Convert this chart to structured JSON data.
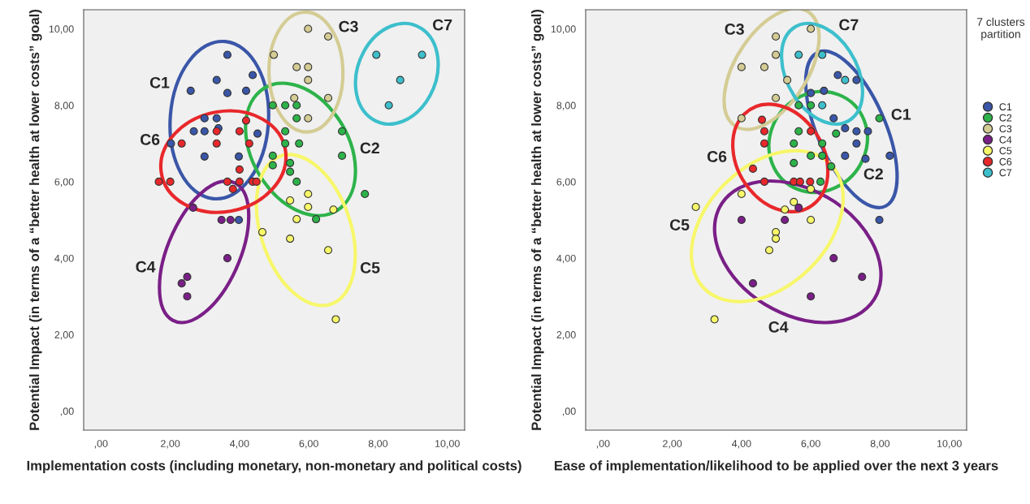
{
  "chart_data": [
    {
      "type": "scatter",
      "xlabel": "Implementation costs (including monetary, non-monetary and political costs)",
      "ylabel": "Potential Impact (in terms of a “better health at lower costs” goal)",
      "xlim": [
        -0.5,
        10.5
      ],
      "ylim": [
        -0.5,
        10.5
      ],
      "xticks": [
        {
          "value": 0,
          "label": ",00"
        },
        {
          "value": 2,
          "label": "2,00"
        },
        {
          "value": 4,
          "label": "4,00"
        },
        {
          "value": 6,
          "label": "6,00"
        },
        {
          "value": 8,
          "label": "8,00"
        },
        {
          "value": 10,
          "label": "10,00"
        }
      ],
      "yticks": [
        {
          "value": 0,
          "label": ",00"
        },
        {
          "value": 2,
          "label": "2,00"
        },
        {
          "value": 4,
          "label": "4,00"
        },
        {
          "value": 6,
          "label": "6,00"
        },
        {
          "value": 8,
          "label": "8,00"
        },
        {
          "value": 10,
          "label": "10,00"
        }
      ],
      "grid": false,
      "legend": false,
      "marker": "circle",
      "series": [
        {
          "color": "#3a56a8",
          "x": [
            3.65,
            4.38,
            3.34,
            2.59,
            3.65,
            4.19,
            2.99,
            3.34,
            3.39,
            2.68,
            2.99,
            2.02,
            2.99,
            3.98,
            4.52,
            3.98
          ],
          "values": [
            9.32,
            8.79,
            8.66,
            8.38,
            8.32,
            8.38,
            7.66,
            7.66,
            7.4,
            7.32,
            7.32,
            7.0,
            6.66,
            6.66,
            7.26,
            5.0
          ]
        },
        {
          "color": "#2db34a",
          "x": [
            4.96,
            5.32,
            5.65,
            5.65,
            5.32,
            6.96,
            5.32,
            5.72,
            4.96,
            6.96,
            4.96,
            5.46,
            5.46,
            5.65,
            7.62,
            6.21
          ],
          "values": [
            8.0,
            8.0,
            8.0,
            7.66,
            7.32,
            7.32,
            7.0,
            7.0,
            6.68,
            6.68,
            6.43,
            6.49,
            6.26,
            6.0,
            5.68,
            5.02
          ]
        },
        {
          "color": "#d4cc94",
          "x": [
            5.98,
            6.56,
            4.99,
            5.65,
            5.98,
            5.98,
            5.58,
            6.56,
            5.98
          ],
          "values": [
            10.0,
            9.8,
            9.32,
            9.0,
            9.0,
            8.66,
            8.19,
            8.19,
            7.66
          ]
        },
        {
          "color": "#7a1f87",
          "x": [
            2.66,
            3.48,
            3.74,
            3.65,
            2.49,
            2.33,
            2.49
          ],
          "values": [
            5.32,
            5.0,
            5.0,
            4.0,
            3.51,
            3.34,
            3.0
          ]
        },
        {
          "color": "#f7f76a",
          "x": [
            5.98,
            5.46,
            5.98,
            6.71,
            5.65,
            4.66,
            5.46,
            6.56,
            6.78
          ],
          "values": [
            5.68,
            5.51,
            5.34,
            5.27,
            5.02,
            4.68,
            4.51,
            4.21,
            2.4
          ]
        },
        {
          "color": "#e8282b",
          "x": [
            4.19,
            3.34,
            4.0,
            2.33,
            3.34,
            4.28,
            4.0,
            1.67,
            2.0,
            3.65,
            4.0,
            4.38,
            4.49,
            3.81
          ],
          "values": [
            7.6,
            7.32,
            7.32,
            7.0,
            7.0,
            7.0,
            6.32,
            6.0,
            6.0,
            6.0,
            6.0,
            6.0,
            6.0,
            5.81
          ]
        },
        {
          "color": "#3dbfcc",
          "x": [
            7.95,
            9.27,
            8.64,
            8.31
          ],
          "values": [
            9.32,
            9.32,
            8.66,
            8.0
          ]
        }
      ],
      "annotations": [
        "C1",
        "C2",
        "C3",
        "C4",
        "C5",
        "C6",
        "C7"
      ]
    },
    {
      "type": "scatter",
      "xlabel": "Ease of implementation/likelihood to be applied over the next 3 years",
      "ylabel": "Potential Impact (in terms of a “better health at lower costs” goal)",
      "xlim": [
        -0.5,
        10.5
      ],
      "ylim": [
        -0.5,
        10.5
      ],
      "xticks": [
        {
          "value": 0,
          "label": ",00"
        },
        {
          "value": 2,
          "label": "2,00"
        },
        {
          "value": 4,
          "label": "4,00"
        },
        {
          "value": 6,
          "label": "6,00"
        },
        {
          "value": 8,
          "label": "8,00"
        },
        {
          "value": 10,
          "label": "10,00"
        }
      ],
      "yticks": [
        {
          "value": 0,
          "label": ",00"
        },
        {
          "value": 2,
          "label": "2,00"
        },
        {
          "value": 4,
          "label": "4,00"
        },
        {
          "value": 6,
          "label": "6,00"
        },
        {
          "value": 8,
          "label": "8,00"
        },
        {
          "value": 10,
          "label": "10,00"
        }
      ],
      "grid": false,
      "legend": "right",
      "legend_title": "7 clusters partition",
      "marker": "circle",
      "series": [
        {
          "name": "C1",
          "color": "#3a56a8",
          "x": [
            6.78,
            7.32,
            6.0,
            6.38,
            6.66,
            6.99,
            7.32,
            7.65,
            7.32,
            6.99,
            7.58,
            8.28,
            7.98
          ],
          "values": [
            8.79,
            8.66,
            8.32,
            8.38,
            7.66,
            7.4,
            7.32,
            7.32,
            7.0,
            6.68,
            6.6,
            6.68,
            5.0
          ]
        },
        {
          "name": "C2",
          "color": "#2db34a",
          "x": [
            7.98,
            6.73,
            5.65,
            6.0,
            5.65,
            5.51,
            6.33,
            6.0,
            6.33,
            6.59,
            5.51,
            6.28
          ],
          "values": [
            7.66,
            7.26,
            8.0,
            8.0,
            7.32,
            7.0,
            7.0,
            6.68,
            6.68,
            6.4,
            6.49,
            6.0
          ]
        },
        {
          "name": "C3",
          "color": "#d4cc94",
          "x": [
            6.0,
            4.99,
            4.99,
            4.0,
            4.66,
            5.32,
            4.99,
            4.0
          ],
          "values": [
            10.0,
            9.8,
            9.32,
            9.0,
            9.0,
            8.66,
            8.19,
            7.66
          ]
        },
        {
          "name": "C4",
          "color": "#7a1f87",
          "x": [
            5.65,
            4.0,
            5.25,
            6.66,
            4.33,
            7.48,
            6.0
          ],
          "values": [
            5.32,
            5.0,
            5.0,
            4.0,
            3.34,
            3.51,
            3.0
          ]
        },
        {
          "name": "C5",
          "color": "#f7f76a",
          "x": [
            4.0,
            2.68,
            5.25,
            6.0,
            6.0,
            4.99,
            4.99,
            4.8,
            3.22,
            5.51
          ],
          "values": [
            5.68,
            5.34,
            5.27,
            5.81,
            5.0,
            4.68,
            4.51,
            4.21,
            2.4,
            5.47
          ]
        },
        {
          "name": "C6",
          "color": "#e8282b",
          "x": [
            4.59,
            4.66,
            4.66,
            6.0,
            4.33,
            4.66,
            5.51,
            5.69,
            5.98
          ],
          "values": [
            7.62,
            7.32,
            7.0,
            7.32,
            6.34,
            6.0,
            6.0,
            6.0,
            6.0
          ]
        },
        {
          "name": "C7",
          "color": "#3dbfcc",
          "x": [
            5.65,
            6.33,
            6.99,
            6.33
          ],
          "values": [
            9.32,
            9.32,
            8.66,
            8.0
          ]
        }
      ],
      "annotations": [
        "C1",
        "C2",
        "C3",
        "C4",
        "C5",
        "C6",
        "C7"
      ]
    }
  ]
}
